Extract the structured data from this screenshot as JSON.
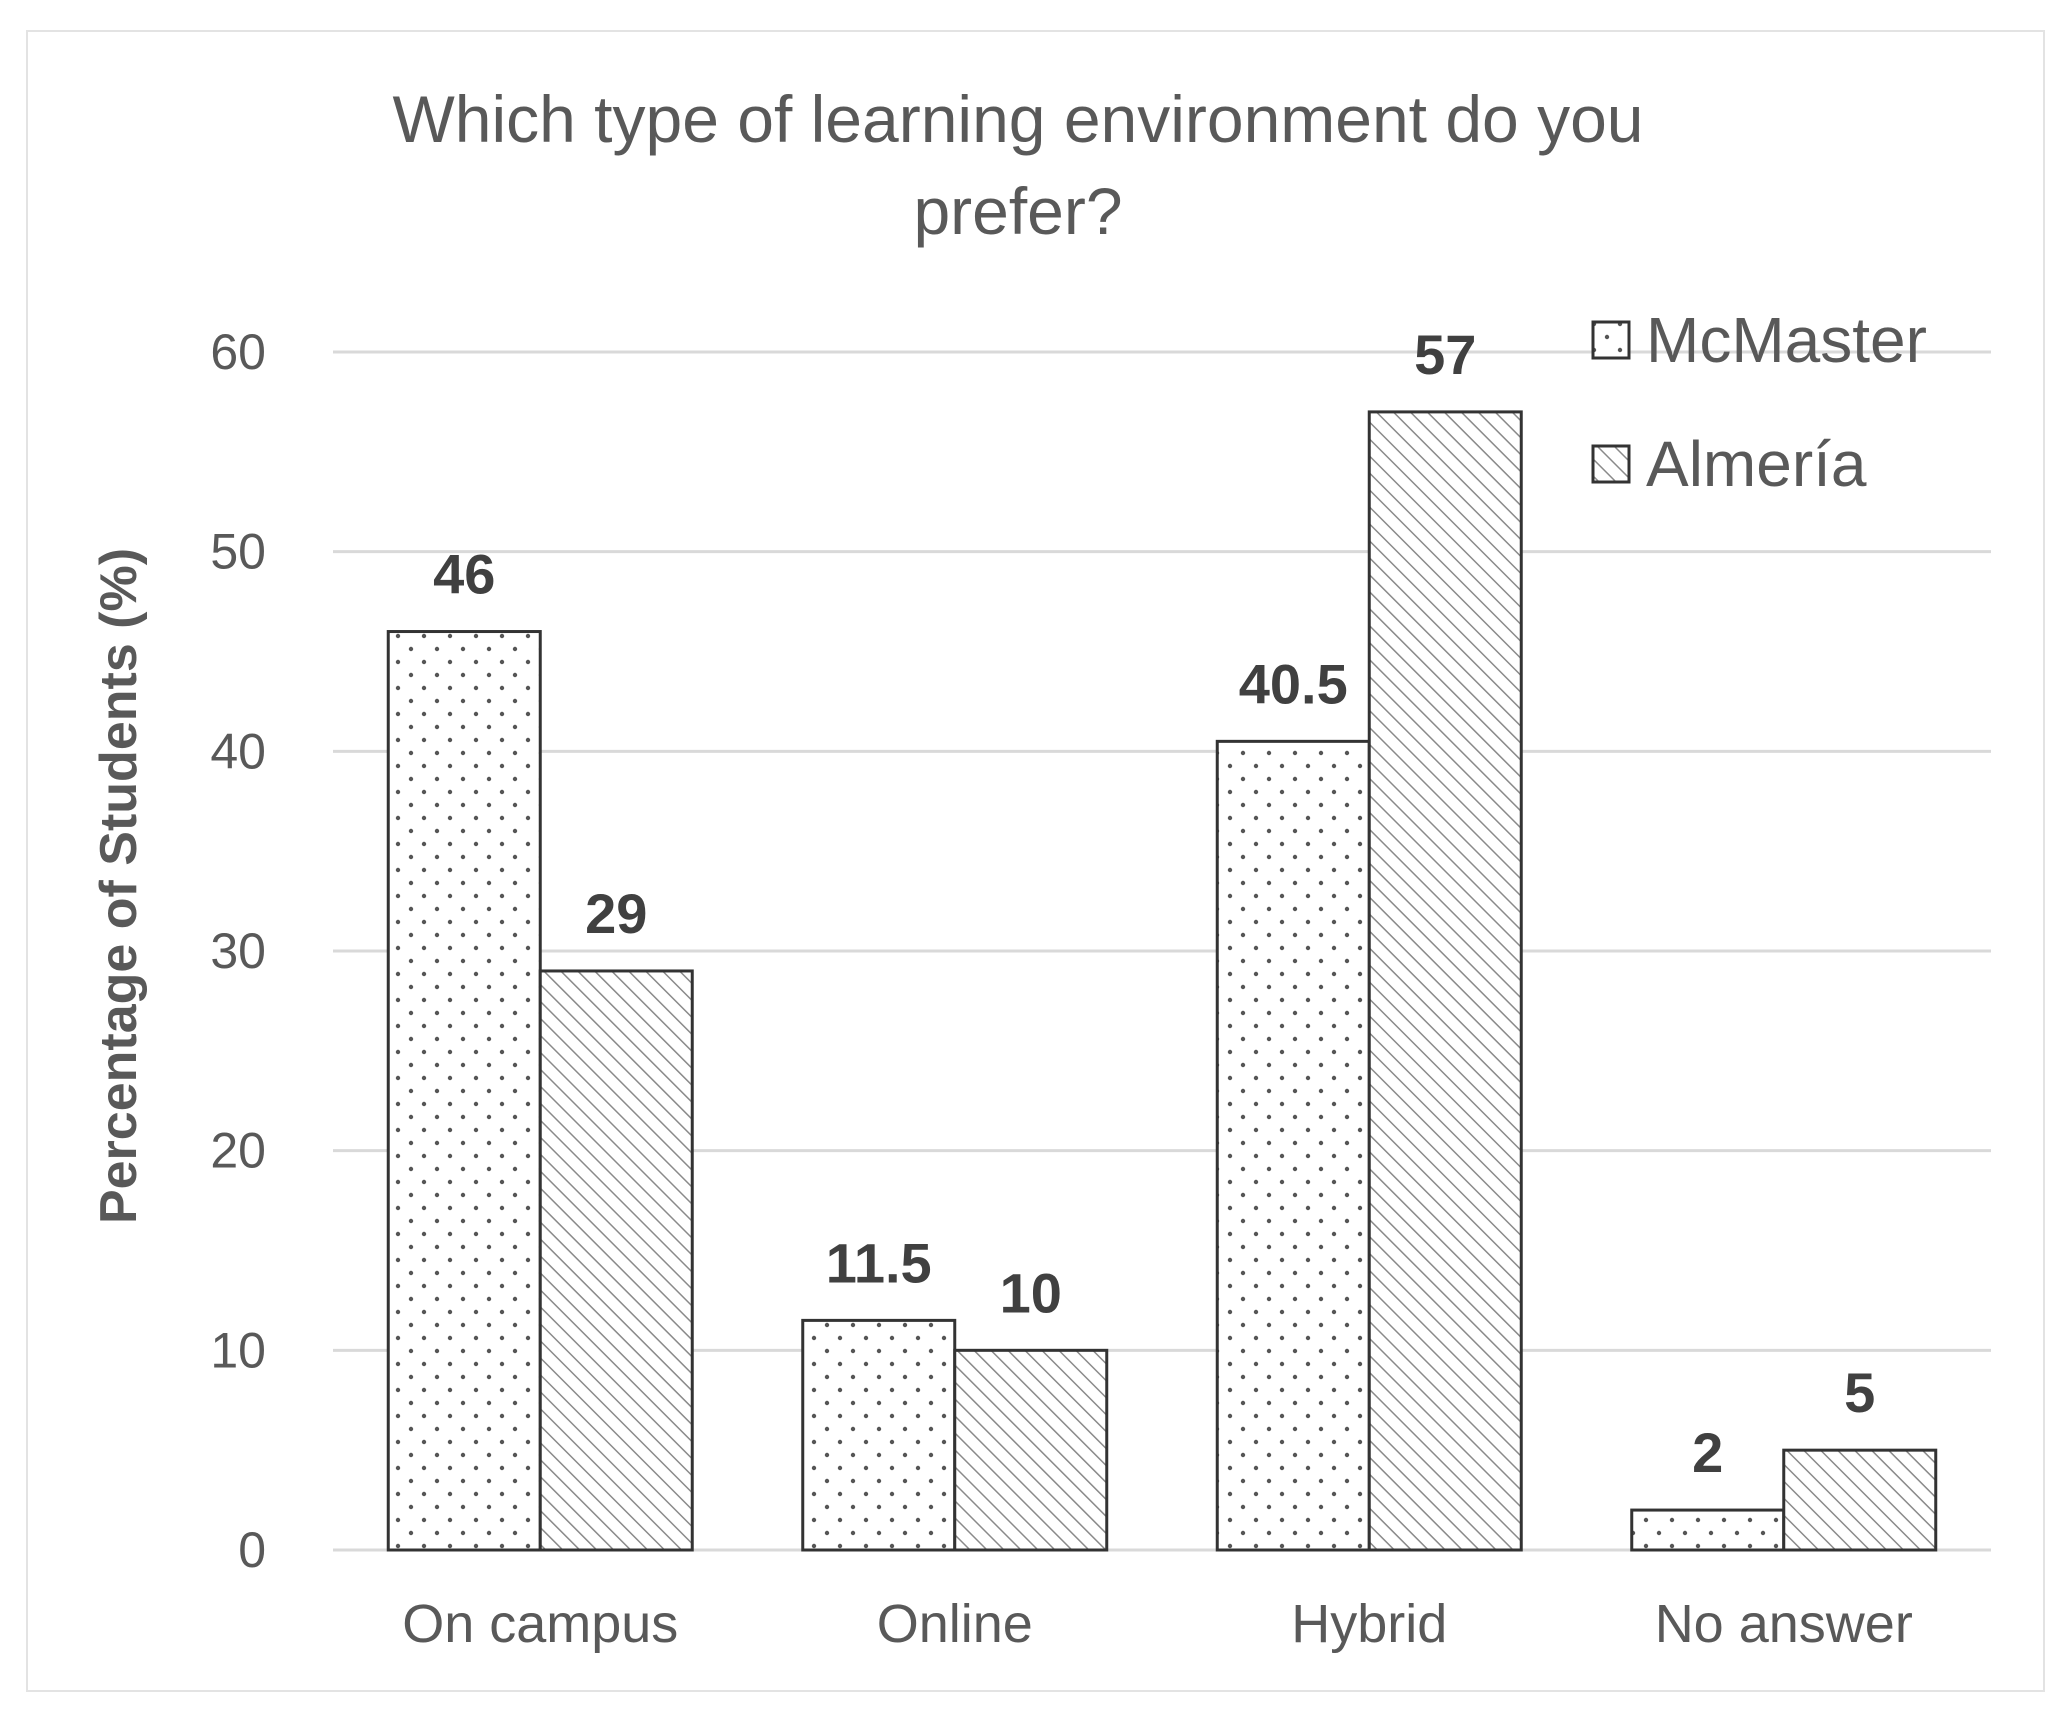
{
  "chart_data": {
    "type": "bar",
    "title": "Which type of learning environment do you prefer?",
    "title_lines": [
      "Which type of learning environment do you",
      "prefer?"
    ],
    "ylabel": "Percentage of Students (%)",
    "xlabel": "",
    "categories": [
      "On campus",
      "Online",
      "Hybrid",
      "No answer"
    ],
    "series": [
      {
        "name": "McMaster",
        "values": [
          46,
          11.5,
          40.5,
          2
        ],
        "pattern": "dots"
      },
      {
        "name": "Almería",
        "values": [
          29,
          10,
          57,
          5
        ],
        "pattern": "diagonal-hatch"
      }
    ],
    "ylim": [
      0,
      60
    ],
    "yticks": [
      0,
      10,
      20,
      30,
      40,
      50,
      60
    ],
    "grid": true,
    "legend_position": "top-right",
    "colors": {
      "gridline": "#d9d9d9",
      "bar_edge": "#333333",
      "pattern": "#555555",
      "text": "#595959"
    }
  }
}
